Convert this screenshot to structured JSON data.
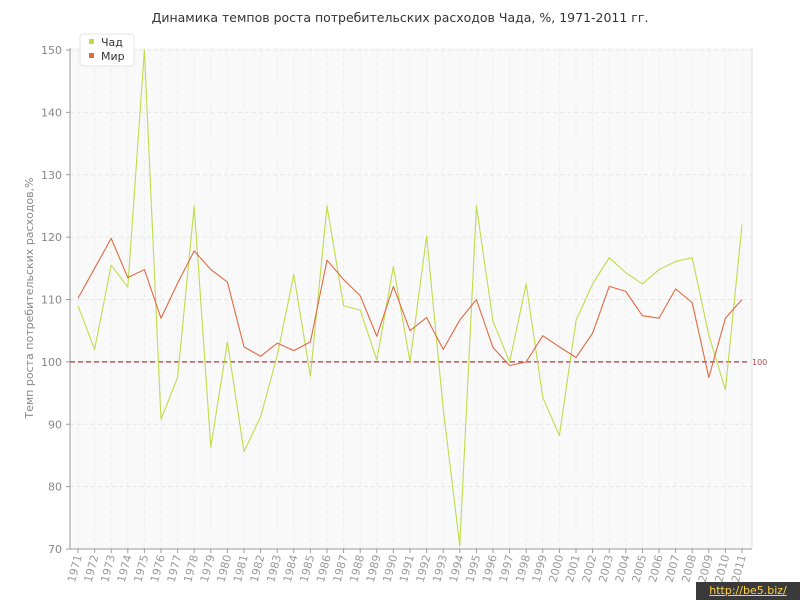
{
  "chart_data": {
    "type": "line",
    "title": "Динамика темпов роста потребительских расходов Чада, %, 1971-2011 гг.",
    "xlabel": "",
    "ylabel": "Темп роста потребительских расходов,%",
    "ylim": [
      70,
      150
    ],
    "yticks": [
      "70",
      "80",
      "90",
      "100",
      "110",
      "120",
      "130",
      "140",
      "150"
    ],
    "grid": true,
    "legend_position": "top-left",
    "x": [
      "1971",
      "1972",
      "1973",
      "1974",
      "1975",
      "1976",
      "1977",
      "1978",
      "1979",
      "1980",
      "1981",
      "1982",
      "1983",
      "1984",
      "1985",
      "1986",
      "1987",
      "1988",
      "1989",
      "1990",
      "1991",
      "1992",
      "1993",
      "1994",
      "1995",
      "1996",
      "1997",
      "1998",
      "1999",
      "2000",
      "2001",
      "2002",
      "2003",
      "2004",
      "2005",
      "2006",
      "2007",
      "2008",
      "2009",
      "2010",
      "2011"
    ],
    "series": [
      {
        "name": "Чад",
        "color": "#bfdc4b",
        "values": [
          109,
          102,
          115.5,
          112,
          150,
          90.8,
          97.5,
          125,
          86.3,
          103.2,
          85.6,
          91.2,
          101,
          114,
          97.7,
          125,
          109,
          108.3,
          100.3,
          115.3,
          100,
          120.2,
          92.5,
          70.5,
          125,
          106.5,
          100,
          112.5,
          94.3,
          88.2,
          106.6,
          112.5,
          116.7,
          114.3,
          112.5,
          114.8,
          116.1,
          116.7,
          104.3,
          95.5,
          122
        ]
      },
      {
        "name": "Мир",
        "color": "#de6a43",
        "values": [
          110.2,
          115,
          119.8,
          113.5,
          114.8,
          107,
          112.6,
          117.8,
          114.8,
          112.8,
          102.4,
          100.9,
          103,
          101.8,
          103.2,
          116.3,
          113.2,
          110.6,
          104.1,
          112.1,
          105,
          107.1,
          102,
          106.7,
          110,
          102.3,
          99.4,
          100,
          104.2,
          102.4,
          100.7,
          104.6,
          112.1,
          111.3,
          107.4,
          107,
          111.7,
          109.5,
          97.5,
          107,
          110
        ]
      }
    ],
    "reference_line": {
      "value": 100,
      "label": "100",
      "color": "#a83b3b"
    }
  },
  "watermark": "http://be5.biz/"
}
